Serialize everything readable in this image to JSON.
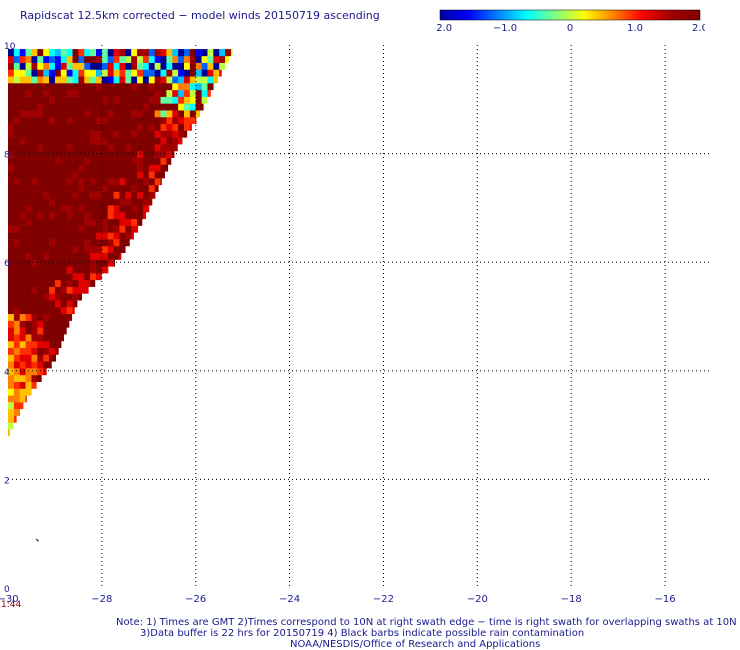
{
  "title": "Rapidscat 12.5km corrected − model winds 20150719 ascending",
  "colorbar": {
    "tick_labels": [
      "−2.0",
      "−1.0",
      "0",
      "1.0",
      "2.0"
    ],
    "tick_values": [
      -2.0,
      -1.0,
      0,
      1.0,
      2.0
    ],
    "range": [
      -2.0,
      2.0
    ],
    "colors": [
      "#0000a0",
      "#0000ff",
      "#0080ff",
      "#00ffff",
      "#80ff80",
      "#ffff00",
      "#ff8000",
      "#ff0000",
      "#a00000",
      "#800000"
    ]
  },
  "chart_data": {
    "type": "heatmap",
    "title": "Rapidscat 12.5km corrected − model winds 20150719 ascending",
    "xlim": [
      -30,
      -15
    ],
    "ylim": [
      0,
      10
    ],
    "x_ticks": [
      -30,
      -28,
      -26,
      -24,
      -22,
      -20,
      -18,
      -16
    ],
    "x_tick_labels": [
      "−30",
      "−28",
      "−26",
      "−24",
      "−22",
      "−20",
      "−18",
      "−16"
    ],
    "y_ticks": [
      0,
      2,
      4,
      6,
      8,
      10
    ],
    "y_tick_labels": [
      "0",
      "2",
      "4",
      "6",
      "8",
      "10"
    ],
    "grid": "dotted",
    "value_range": [
      -2.0,
      2.0
    ],
    "swath_edge": [
      [
        -30,
        2.8
      ],
      [
        -29.6,
        3.5
      ],
      [
        -29.0,
        4.2
      ],
      [
        -28.5,
        5.3
      ],
      [
        -27.6,
        6.1
      ],
      [
        -27.1,
        6.8
      ],
      [
        -26.4,
        8.1
      ],
      [
        -26.0,
        8.6
      ],
      [
        -25.2,
        9.9
      ],
      [
        -30,
        9.9
      ]
    ]
  },
  "time_label": "1:44",
  "notes": {
    "line1": "Note: 1) Times are GMT 2)Times correspond to 10N at right swath edge − time is right swath for overlapping swaths at 10N",
    "line2": "3)Data buffer is 22 hrs for 20150719 4) Black barbs indicate possible rain contamination",
    "line3": "NOAA/NESDIS/Office of Research and Applications"
  },
  "colors": {
    "text": "#1a1a8c",
    "grid": "#000000",
    "time": "#800000"
  }
}
